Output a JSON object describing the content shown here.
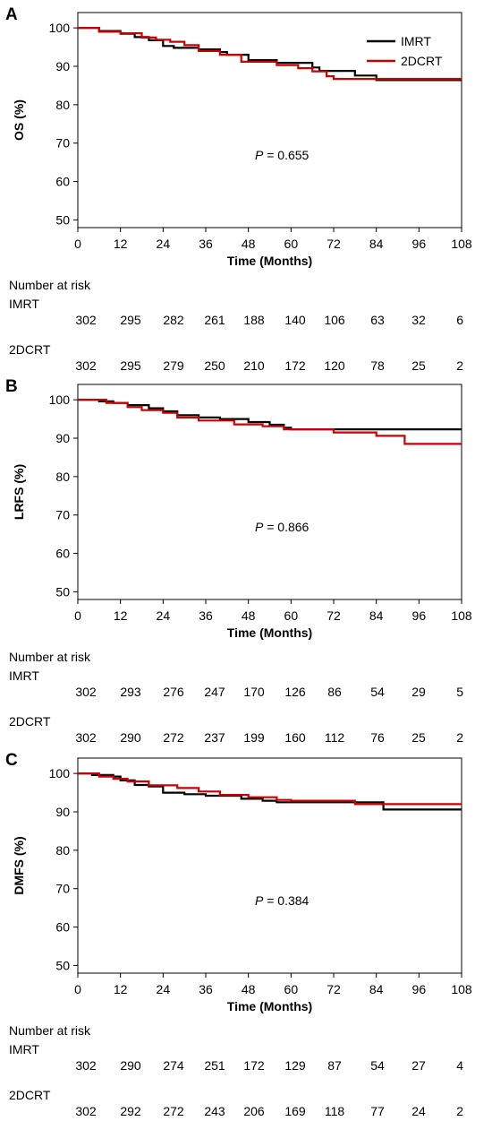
{
  "chart_data": [
    {
      "panel": "A",
      "type": "line",
      "ylabel": "OS (%)",
      "xlabel": "Time (Months)",
      "xlim": [
        0,
        108
      ],
      "ylim": [
        48,
        104
      ],
      "xticks": [
        0,
        12,
        24,
        36,
        48,
        60,
        72,
        84,
        96,
        108
      ],
      "yticks": [
        50,
        60,
        70,
        80,
        90,
        100
      ],
      "legend": {
        "placement": "top-right",
        "entries": [
          "IMRT",
          "2DCRT"
        ]
      },
      "annotation": {
        "prefix": "P",
        "text": " = 0.655"
      },
      "series": [
        {
          "name": "IMRT",
          "color": "#000000",
          "x": [
            0,
            6,
            12,
            16,
            20,
            24,
            27,
            34,
            40,
            42,
            48,
            56,
            66,
            68,
            78,
            84,
            108
          ],
          "y": [
            100,
            99.2,
            98.5,
            97.6,
            96.8,
            95.3,
            94.8,
            94.4,
            93.7,
            93,
            91.6,
            90.9,
            89.7,
            88.8,
            87.6,
            86.4,
            86.4
          ]
        },
        {
          "name": "2DCRT",
          "color": "#cc0000",
          "x": [
            0,
            6,
            12,
            18,
            22,
            26,
            30,
            34,
            40,
            46,
            56,
            62,
            66,
            70,
            72,
            108
          ],
          "y": [
            100,
            99,
            98.6,
            97.5,
            96.9,
            96.4,
            95.5,
            94,
            93,
            91.2,
            90.3,
            89.5,
            88.7,
            87.4,
            86.7,
            86.7
          ]
        }
      ],
      "risk_table": {
        "title": "Number at risk",
        "rows": [
          {
            "label": "IMRT",
            "values": [
              "302",
              "295",
              "282",
              "261",
              "188",
              "140",
              "106",
              "63",
              "32",
              "6"
            ]
          },
          {
            "label": "2DCRT",
            "values": [
              "302",
              "295",
              "279",
              "250",
              "210",
              "172",
              "120",
              "78",
              "25",
              "2"
            ]
          }
        ]
      }
    },
    {
      "panel": "B",
      "type": "line",
      "ylabel": "LRFS (%)",
      "xlabel": "Time (Months)",
      "xlim": [
        0,
        108
      ],
      "ylim": [
        48,
        104
      ],
      "xticks": [
        0,
        12,
        24,
        36,
        48,
        60,
        72,
        84,
        96,
        108
      ],
      "yticks": [
        50,
        60,
        70,
        80,
        90,
        100
      ],
      "annotation": {
        "prefix": "P",
        "text": " = 0.866"
      },
      "series": [
        {
          "name": "IMRT",
          "color": "#000000",
          "x": [
            0,
            6,
            10,
            14,
            20,
            24,
            28,
            34,
            40,
            48,
            54,
            58,
            60,
            108
          ],
          "y": [
            100,
            99.6,
            99.2,
            98.6,
            97.8,
            97,
            96,
            95.4,
            95,
            94.2,
            93.5,
            92.7,
            92.3,
            92.3
          ]
        },
        {
          "name": "2DCRT",
          "color": "#cc0000",
          "x": [
            0,
            8,
            14,
            18,
            24,
            28,
            34,
            44,
            52,
            58,
            72,
            84,
            92,
            108
          ],
          "y": [
            100,
            99.2,
            98.1,
            97.3,
            96.6,
            95.4,
            94.6,
            93.6,
            93.1,
            92.3,
            91.5,
            90.6,
            88.5,
            88.5
          ]
        }
      ],
      "risk_table": {
        "title": "Number at risk",
        "rows": [
          {
            "label": "IMRT",
            "values": [
              "302",
              "293",
              "276",
              "247",
              "170",
              "126",
              "86",
              "54",
              "29",
              "5"
            ]
          },
          {
            "label": "2DCRT",
            "values": [
              "302",
              "290",
              "272",
              "237",
              "199",
              "160",
              "112",
              "76",
              "25",
              "2"
            ]
          }
        ]
      }
    },
    {
      "panel": "C",
      "type": "line",
      "ylabel": "DMFS (%)",
      "xlabel": "Time (Months)",
      "xlim": [
        0,
        108
      ],
      "ylim": [
        48,
        104
      ],
      "xticks": [
        0,
        12,
        24,
        36,
        48,
        60,
        72,
        84,
        96,
        108
      ],
      "yticks": [
        50,
        60,
        70,
        80,
        90,
        100
      ],
      "annotation": {
        "prefix": "P",
        "text": " = 0.384"
      },
      "series": [
        {
          "name": "IMRT",
          "color": "#000000",
          "x": [
            0,
            4,
            10,
            12,
            16,
            20,
            24,
            30,
            36,
            46,
            52,
            56,
            84,
            86,
            108
          ],
          "y": [
            100,
            99.6,
            99.2,
            98.2,
            97,
            96.6,
            95,
            94.6,
            94.2,
            93.4,
            92.9,
            92.5,
            92.5,
            90.6,
            90.6
          ]
        },
        {
          "name": "2DCRT",
          "color": "#cc0000",
          "x": [
            0,
            6,
            10,
            14,
            20,
            28,
            34,
            40,
            48,
            56,
            60,
            78,
            108
          ],
          "y": [
            100,
            99.2,
            98.6,
            97.9,
            96.9,
            96.2,
            95.3,
            94.4,
            93.8,
            93.1,
            92.9,
            92,
            92
          ]
        }
      ],
      "risk_table": {
        "title": "Number at risk",
        "rows": [
          {
            "label": "IMRT",
            "values": [
              "302",
              "290",
              "274",
              "251",
              "172",
              "129",
              "87",
              "54",
              "27",
              "4"
            ]
          },
          {
            "label": "2DCRT",
            "values": [
              "302",
              "292",
              "272",
              "243",
              "206",
              "169",
              "118",
              "77",
              "24",
              "2"
            ]
          }
        ]
      }
    }
  ]
}
